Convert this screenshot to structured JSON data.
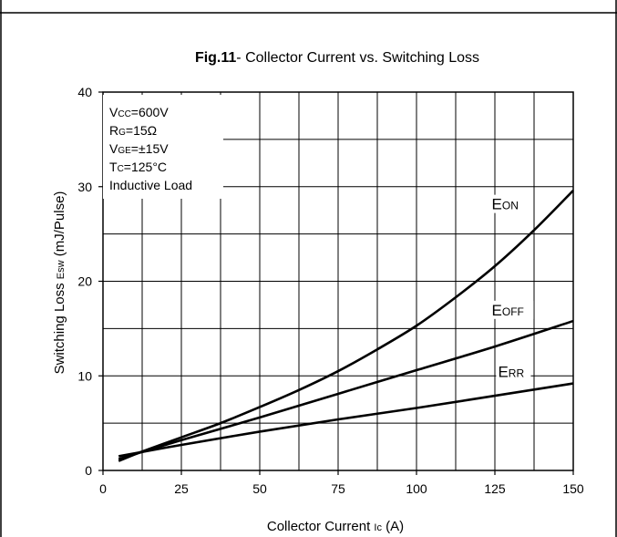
{
  "chart_data": {
    "type": "line",
    "title_prefix": "Fig.11",
    "title_rest": "- Collector Current vs. Switching Loss",
    "xlabel": {
      "main": "Collector Current ",
      "sub": "Ic",
      "unit": " (A)"
    },
    "ylabel": {
      "main": "Switching Loss ",
      "sub": "Esw",
      "unit": " (mJ/Pulse)"
    },
    "xlim": [
      0,
      150
    ],
    "ylim": [
      0,
      40
    ],
    "x_ticks": [
      0,
      25,
      50,
      75,
      100,
      125,
      150
    ],
    "y_ticks": [
      0,
      10,
      20,
      30,
      40
    ],
    "x_tick_labels": [
      "0",
      "25",
      "50",
      "75",
      "100",
      "125",
      "150"
    ],
    "y_tick_labels": [
      "0",
      "10",
      "20",
      "30",
      "40"
    ],
    "x_minor_step": 12.5,
    "y_minor_step": 5,
    "grid": true,
    "conditions": [
      {
        "main": "V",
        "sub": "CC",
        "rest": "=600V"
      },
      {
        "main": "R",
        "sub": "G",
        "rest": "=15Ω"
      },
      {
        "main": "V",
        "sub": "GE",
        "rest": "=±15V"
      },
      {
        "main": "T",
        "sub": "C",
        "rest": "=125°C"
      },
      {
        "main": "Inductive Load",
        "sub": "",
        "rest": ""
      }
    ],
    "series": [
      {
        "name_main": "E",
        "name_sub": "ON",
        "label_at": [
          124,
          27.6
        ],
        "x": [
          5,
          12.5,
          25,
          37.5,
          50,
          62.5,
          75,
          87.5,
          100,
          112.5,
          125,
          137.5,
          150
        ],
        "values": [
          1.0,
          2.0,
          3.5,
          5.0,
          6.7,
          8.5,
          10.5,
          12.8,
          15.3,
          18.3,
          21.6,
          25.4,
          29.6
        ]
      },
      {
        "name_main": "E",
        "name_sub": "OFF",
        "label_at": [
          124,
          16.4
        ],
        "x": [
          5,
          25,
          50,
          75,
          100,
          125,
          150
        ],
        "values": [
          1.2,
          3.2,
          5.6,
          8.1,
          10.6,
          13.1,
          15.8
        ]
      },
      {
        "name_main": "E",
        "name_sub": "RR",
        "label_at": [
          126,
          9.9
        ],
        "x": [
          5,
          25,
          50,
          75,
          100,
          125,
          150
        ],
        "values": [
          1.5,
          2.7,
          4.1,
          5.4,
          6.6,
          7.9,
          9.2
        ]
      }
    ]
  }
}
